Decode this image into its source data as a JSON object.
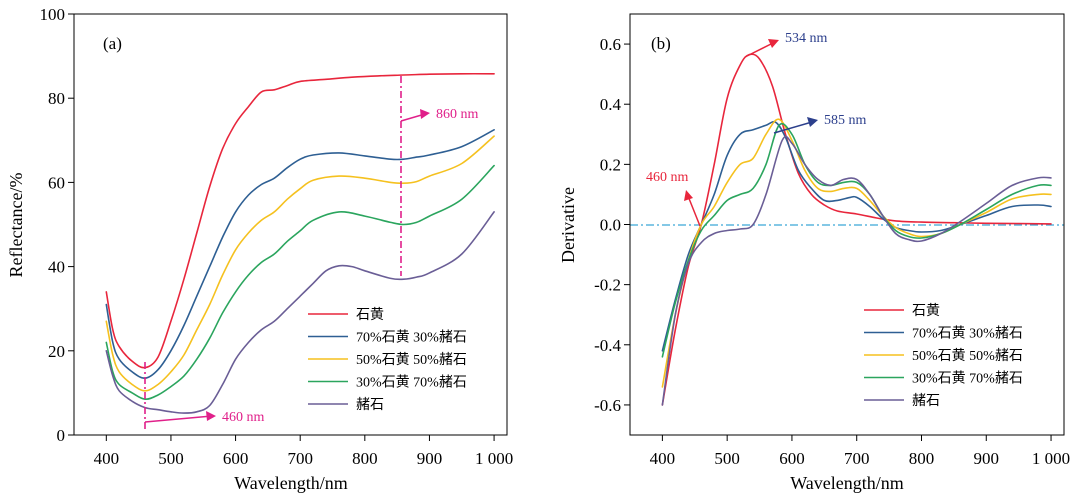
{
  "series_colors": {
    "orpiment": "#e8263c",
    "mix70": "#2e5f93",
    "mix50": "#f5c11f",
    "mix30": "#2ba55e",
    "hematite": "#6a5e96"
  },
  "chart_data": [
    {
      "type": "line",
      "panel_label": "(a)",
      "xlabel": "Wavelength/nm",
      "ylabel": "Reflectance/%",
      "xlim": [
        350,
        1020
      ],
      "ylim": [
        0,
        100
      ],
      "x_ticks": [
        400,
        500,
        600,
        700,
        800,
        900,
        1000
      ],
      "x_tick_labels": [
        "400",
        "500",
        "600",
        "700",
        "800",
        "900",
        "1 000"
      ],
      "y_ticks": [
        0,
        20,
        40,
        60,
        80,
        100
      ],
      "y_tick_labels": [
        "0",
        "20",
        "40",
        "60",
        "80",
        "100"
      ],
      "legend_position": "bottom-right",
      "series": [
        {
          "name": "石黄",
          "key": "orpiment",
          "x": [
            400,
            410,
            420,
            440,
            460,
            480,
            500,
            520,
            540,
            560,
            580,
            600,
            620,
            640,
            660,
            680,
            700,
            740,
            780,
            820,
            860,
            900,
            950,
            1000
          ],
          "y": [
            34,
            25,
            21,
            17.5,
            16,
            18.5,
            27,
            37,
            48,
            59,
            68,
            74,
            78,
            81.5,
            82,
            83,
            84,
            84.5,
            85,
            85.3,
            85.5,
            85.7,
            85.8,
            85.8
          ]
        },
        {
          "name": "70%石黄 30%赭石",
          "key": "mix70",
          "x": [
            400,
            410,
            420,
            440,
            460,
            480,
            500,
            520,
            540,
            560,
            580,
            600,
            620,
            640,
            660,
            680,
            700,
            720,
            760,
            800,
            840,
            860,
            880,
            900,
            950,
            1000
          ],
          "y": [
            31,
            22,
            18,
            15,
            13.5,
            15.5,
            20,
            26,
            33,
            40,
            47,
            53,
            57,
            59.5,
            61,
            63.5,
            65.5,
            66.5,
            67,
            66.3,
            65.5,
            65.5,
            66,
            66.5,
            68.5,
            72.5
          ]
        },
        {
          "name": "50%石黄 50%赭石",
          "key": "mix50",
          "x": [
            400,
            410,
            420,
            440,
            460,
            480,
            500,
            520,
            540,
            560,
            580,
            600,
            620,
            640,
            660,
            680,
            700,
            720,
            760,
            800,
            840,
            860,
            880,
            900,
            950,
            1000
          ],
          "y": [
            27,
            19,
            15,
            12,
            10.5,
            12,
            15,
            19,
            25,
            31,
            38,
            44,
            48,
            51,
            53,
            56,
            58.5,
            60.5,
            61.5,
            61,
            60,
            59.8,
            60.2,
            61.5,
            64.5,
            71
          ]
        },
        {
          "name": "30%石黄 70%赭石",
          "key": "mix30",
          "x": [
            400,
            410,
            420,
            440,
            460,
            480,
            500,
            520,
            540,
            560,
            580,
            600,
            620,
            640,
            660,
            680,
            700,
            720,
            760,
            800,
            840,
            860,
            880,
            900,
            950,
            1000
          ],
          "y": [
            22,
            15,
            12,
            10,
            8.5,
            9.5,
            11.5,
            14,
            18,
            23,
            29,
            34,
            38,
            41,
            43,
            46,
            48.5,
            51,
            53,
            52,
            50.5,
            50,
            50.5,
            52,
            56,
            64
          ]
        },
        {
          "name": "赭石",
          "key": "hematite",
          "x": [
            400,
            410,
            420,
            440,
            460,
            480,
            500,
            520,
            540,
            560,
            580,
            600,
            620,
            640,
            660,
            680,
            700,
            720,
            740,
            760,
            780,
            800,
            840,
            860,
            880,
            900,
            950,
            1000
          ],
          "y": [
            20,
            14,
            10.5,
            8,
            6.5,
            6,
            5.5,
            5.2,
            5.5,
            7,
            12,
            18,
            22,
            25,
            27,
            30,
            33,
            36,
            39,
            40.2,
            40,
            39,
            37.2,
            37,
            37.5,
            38.5,
            43,
            53
          ]
        }
      ],
      "annotations": [
        {
          "text": "460 nm",
          "x": 460
        },
        {
          "text": "860 nm",
          "x": 860
        }
      ]
    },
    {
      "type": "line",
      "panel_label": "(b)",
      "xlabel": "Wavelength/nm",
      "ylabel": "Derivative",
      "xlim": [
        350,
        1020
      ],
      "ylim": [
        -0.7,
        0.7
      ],
      "x_ticks": [
        400,
        500,
        600,
        700,
        800,
        900,
        1000
      ],
      "x_tick_labels": [
        "400",
        "500",
        "600",
        "700",
        "800",
        "900",
        "1 000"
      ],
      "y_ticks": [
        -0.6,
        -0.4,
        -0.2,
        0,
        0.2,
        0.4,
        0.6
      ],
      "y_tick_labels": [
        "-0.6",
        "-0.4",
        "-0.2",
        "0.0",
        "0.2",
        "0.4",
        "0.6"
      ],
      "legend_position": "bottom-right",
      "series": [
        {
          "name": "石黄",
          "key": "orpiment",
          "x": [
            400,
            420,
            440,
            460,
            480,
            500,
            520,
            534,
            550,
            570,
            590,
            610,
            630,
            650,
            670,
            700,
            730,
            760,
            800,
            850,
            900,
            950,
            1000
          ],
          "y": [
            -0.6,
            -0.35,
            -0.14,
            0,
            0.2,
            0.42,
            0.53,
            0.565,
            0.55,
            0.46,
            0.3,
            0.17,
            0.1,
            0.065,
            0.045,
            0.035,
            0.022,
            0.012,
            0.008,
            0.006,
            0.004,
            0.003,
            0.002
          ]
        },
        {
          "name": "70%石黄 30%赭石",
          "key": "mix70",
          "x": [
            400,
            420,
            440,
            460,
            480,
            500,
            520,
            540,
            560,
            575,
            590,
            610,
            630,
            650,
            670,
            690,
            700,
            720,
            740,
            760,
            780,
            800,
            830,
            860,
            900,
            940,
            980,
            1000
          ],
          "y": [
            -0.42,
            -0.25,
            -0.1,
            0,
            0.1,
            0.23,
            0.3,
            0.315,
            0.33,
            0.34,
            0.29,
            0.18,
            0.12,
            0.08,
            0.08,
            0.09,
            0.09,
            0.06,
            0.02,
            -0.01,
            -0.02,
            -0.025,
            -0.02,
            0,
            0.03,
            0.06,
            0.065,
            0.06
          ]
        },
        {
          "name": "50%石黄 50%赭石",
          "key": "mix50",
          "x": [
            400,
            420,
            440,
            460,
            480,
            500,
            520,
            540,
            560,
            580,
            600,
            620,
            640,
            660,
            680,
            700,
            720,
            740,
            760,
            780,
            800,
            830,
            860,
            900,
            940,
            980,
            1000
          ],
          "y": [
            -0.54,
            -0.3,
            -0.12,
            0,
            0.06,
            0.14,
            0.2,
            0.22,
            0.3,
            0.35,
            0.28,
            0.18,
            0.12,
            0.11,
            0.12,
            0.12,
            0.08,
            0.03,
            -0.01,
            -0.03,
            -0.04,
            -0.03,
            0,
            0.04,
            0.085,
            0.1,
            0.1
          ]
        },
        {
          "name": "30%石黄 70%赭石",
          "key": "mix30",
          "x": [
            400,
            420,
            440,
            460,
            480,
            500,
            520,
            540,
            560,
            580,
            600,
            620,
            640,
            660,
            680,
            700,
            720,
            740,
            760,
            780,
            800,
            830,
            860,
            900,
            940,
            980,
            1000
          ],
          "y": [
            -0.44,
            -0.26,
            -0.12,
            -0.02,
            0.03,
            0.08,
            0.1,
            0.12,
            0.2,
            0.33,
            0.3,
            0.2,
            0.14,
            0.13,
            0.14,
            0.14,
            0.1,
            0.03,
            -0.02,
            -0.04,
            -0.045,
            -0.03,
            0,
            0.05,
            0.1,
            0.13,
            0.13
          ]
        },
        {
          "name": "赭石",
          "key": "hematite",
          "x": [
            400,
            420,
            440,
            460,
            480,
            500,
            520,
            540,
            560,
            585,
            600,
            620,
            640,
            660,
            680,
            700,
            720,
            740,
            760,
            780,
            800,
            830,
            860,
            900,
            940,
            980,
            1000
          ],
          "y": [
            -0.6,
            -0.3,
            -0.13,
            -0.06,
            -0.03,
            -0.02,
            -0.015,
            0,
            0.1,
            0.28,
            0.27,
            0.2,
            0.15,
            0.13,
            0.15,
            0.15,
            0.1,
            0.03,
            -0.03,
            -0.05,
            -0.055,
            -0.03,
            0.01,
            0.07,
            0.13,
            0.155,
            0.155
          ]
        }
      ],
      "annotations": [
        {
          "text": "534 nm",
          "x": 534
        },
        {
          "text": "585 nm",
          "x": 585
        },
        {
          "text": "460 nm",
          "x": 460
        }
      ]
    }
  ]
}
